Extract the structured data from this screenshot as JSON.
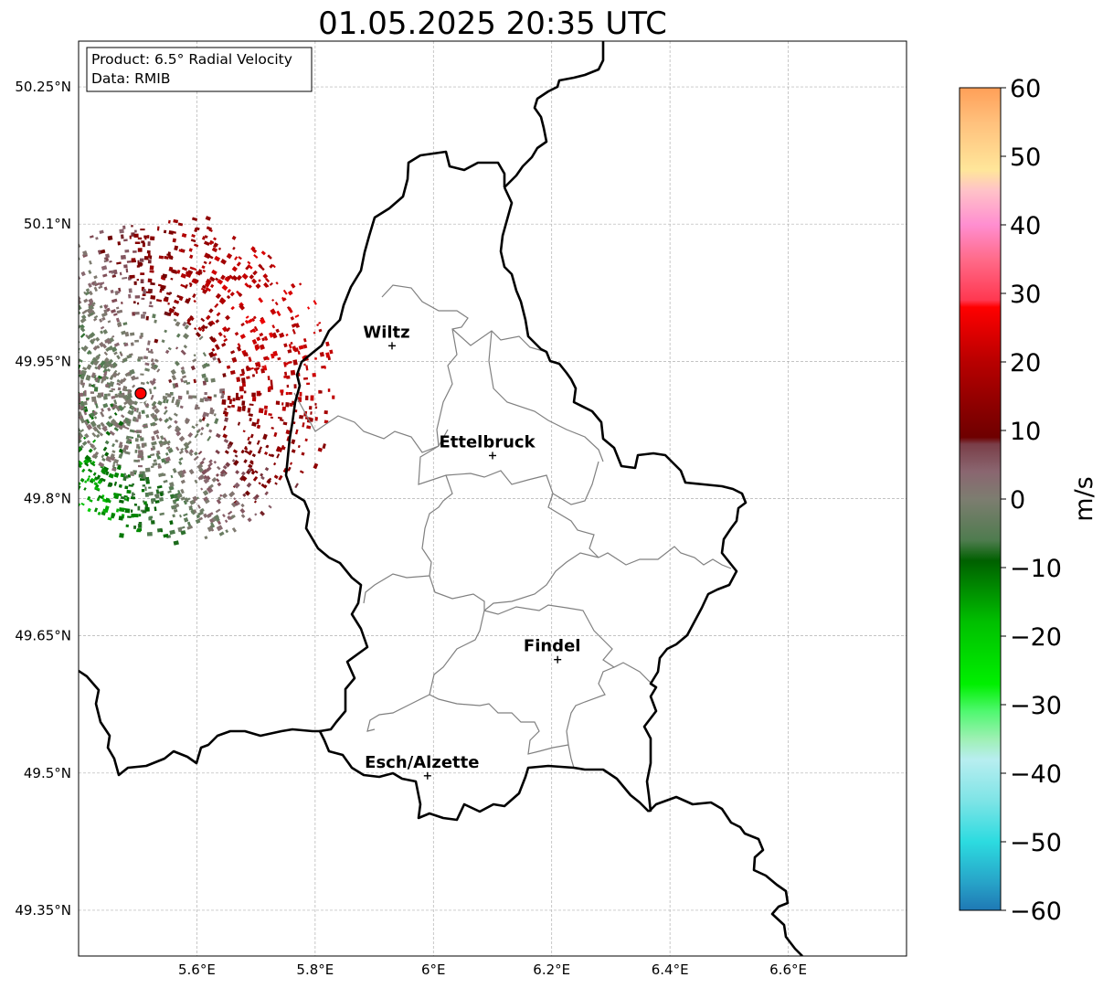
{
  "title": "01.05.2025 20:35 UTC",
  "info_box": {
    "product_line": "Product: 6.5° Radial Velocity",
    "data_line": "Data: RMIB"
  },
  "axes": {
    "x_ticks": [
      "5.6°E",
      "5.8°E",
      "6°E",
      "6.2°E",
      "6.4°E",
      "6.6°E"
    ],
    "y_ticks": [
      "50.25°N",
      "50.1°N",
      "49.95°N",
      "49.8°N",
      "49.65°N",
      "49.5°N",
      "49.35°N"
    ],
    "lon_range": [
      5.4,
      6.8
    ],
    "lat_range": [
      49.3,
      50.3
    ],
    "grid": true
  },
  "cities": [
    {
      "name": "Wiltz",
      "lon": 5.93,
      "lat": 49.967
    },
    {
      "name": "Ettelbruck",
      "lon": 6.1,
      "lat": 49.847
    },
    {
      "name": "Findel",
      "lon": 6.21,
      "lat": 49.624
    },
    {
      "name": "Esch/Alzette",
      "lon": 5.99,
      "lat": 49.497
    }
  ],
  "radar_site": {
    "lon": 5.505,
    "lat": 49.915,
    "color": "#ff0000"
  },
  "colorbar": {
    "label": "m/s",
    "range": [
      -60,
      60
    ],
    "ticks": [
      "60",
      "50",
      "40",
      "30",
      "20",
      "10",
      "0",
      "−10",
      "−20",
      "−30",
      "−40",
      "−50",
      "−60"
    ],
    "stops": [
      {
        "v": -60,
        "c": "#1f78b4"
      },
      {
        "v": -56,
        "c": "#27a3c8"
      },
      {
        "v": -50,
        "c": "#2cdbe0"
      },
      {
        "v": -44,
        "c": "#7ee4e6"
      },
      {
        "v": -38,
        "c": "#b8eef0"
      },
      {
        "v": -35,
        "c": "#9ef0b4"
      },
      {
        "v": -31,
        "c": "#50f870"
      },
      {
        "v": -27,
        "c": "#00f000"
      },
      {
        "v": -18,
        "c": "#00c000"
      },
      {
        "v": -9,
        "c": "#006000"
      },
      {
        "v": -6,
        "c": "#4f7c4f"
      },
      {
        "v": 0,
        "c": "#7d7d70"
      },
      {
        "v": 4,
        "c": "#8a6670"
      },
      {
        "v": 8,
        "c": "#7a3e48"
      },
      {
        "v": 9,
        "c": "#6e0000"
      },
      {
        "v": 20,
        "c": "#b80000"
      },
      {
        "v": 28,
        "c": "#ff0000"
      },
      {
        "v": 29,
        "c": "#ff3850"
      },
      {
        "v": 35,
        "c": "#ff6b8a"
      },
      {
        "v": 40,
        "c": "#ff8ed0"
      },
      {
        "v": 45,
        "c": "#ffc2c8"
      },
      {
        "v": 48,
        "c": "#ffe69a"
      },
      {
        "v": 55,
        "c": "#ffc07c"
      },
      {
        "v": 60,
        "c": "#ff9f58"
      }
    ]
  },
  "colors": {
    "border": "#000000",
    "cantons": "#808080",
    "grid": "#b0b0b0"
  }
}
